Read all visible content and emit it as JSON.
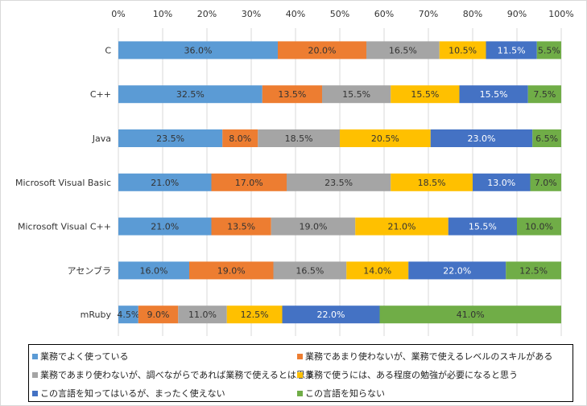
{
  "chart_data": {
    "type": "bar",
    "orientation": "horizontal",
    "stacked": "percent",
    "categories": [
      "C",
      "C++",
      "Java",
      "Microsoft Visual Basic",
      "Microsoft Visual C++",
      "アセンブラ",
      "mRuby"
    ],
    "xlim": [
      0,
      100
    ],
    "x_ticks": [
      "0%",
      "10%",
      "20%",
      "30%",
      "40%",
      "50%",
      "60%",
      "70%",
      "80%",
      "90%",
      "100%"
    ],
    "grid": true,
    "legend_position": "bottom",
    "series": [
      {
        "name": "業務でよく使っている",
        "color": "#5b9bd5",
        "values": [
          36.0,
          32.5,
          23.5,
          21.0,
          21.0,
          16.0,
          4.5
        ]
      },
      {
        "name": "業務であまり使わないが、業務で使えるレベルのスキルがある",
        "color": "#ed7d31",
        "values": [
          20.0,
          13.5,
          8.0,
          17.0,
          13.5,
          19.0,
          9.0
        ]
      },
      {
        "name": "業務であまり使わないが、調べながらであれば業務で使えるとは思う",
        "color": "#a5a5a5",
        "values": [
          16.5,
          15.5,
          18.5,
          23.5,
          19.0,
          16.5,
          11.0
        ]
      },
      {
        "name": "業務で使うには、ある程度の勉強が必要になると思う",
        "color": "#ffc000",
        "values": [
          10.5,
          15.5,
          20.5,
          18.5,
          21.0,
          14.0,
          12.5
        ]
      },
      {
        "name": "この言語を知ってはいるが、まったく使えない",
        "color": "#4472c4",
        "values": [
          11.5,
          15.5,
          23.0,
          13.0,
          15.5,
          22.0,
          22.0
        ]
      },
      {
        "name": "この言語を知らない",
        "color": "#70ad47",
        "values": [
          5.5,
          7.5,
          6.5,
          7.0,
          10.0,
          12.5,
          41.0
        ]
      }
    ]
  }
}
